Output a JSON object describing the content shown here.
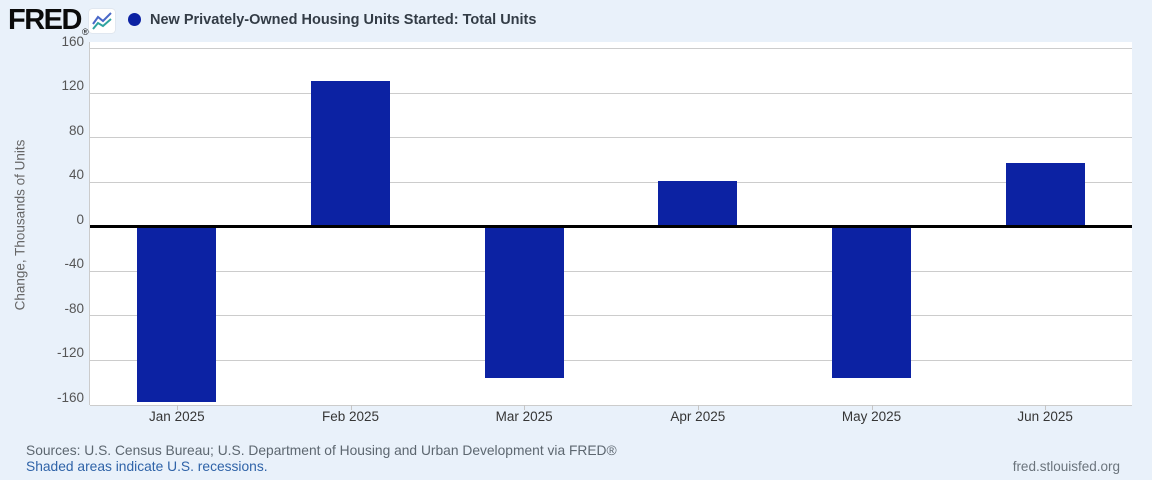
{
  "header": {
    "logo_text": "FRED",
    "registered_mark": "®",
    "title": "New Privately-Owned Housing Units Started: Total Units"
  },
  "chart_data": {
    "type": "bar",
    "title": "New Privately-Owned Housing Units Started: Total Units",
    "xlabel": "",
    "ylabel": "Change, Thousands of Units",
    "categories": [
      "Jan 2025",
      "Feb 2025",
      "Mar 2025",
      "Apr 2025",
      "May 2025",
      "Jun 2025"
    ],
    "values": [
      -157,
      131,
      -136,
      41,
      -136,
      57
    ],
    "yticks": [
      160,
      120,
      80,
      40,
      0,
      -40,
      -80,
      -120,
      -160
    ],
    "ylim": [
      -160,
      166
    ],
    "grid": true,
    "zero_line": true,
    "legend_position": "top-left",
    "bar_color": "#0c22a3"
  },
  "footer": {
    "sources_line": "Sources: U.S. Census Bureau; U.S. Department of Housing and Urban Development via FRED®",
    "recessions_link": "Shaded areas indicate U.S. recessions.",
    "site_link": "fred.stlouisfed.org"
  },
  "colors": {
    "background": "#e9f1fa",
    "plot_background": "#ffffff",
    "bar": "#0c22a3",
    "gridline": "#cccccc",
    "zero_line": "#000000",
    "axis_text": "#555555",
    "title_text": "#333c46",
    "link": "#2f63a8"
  }
}
